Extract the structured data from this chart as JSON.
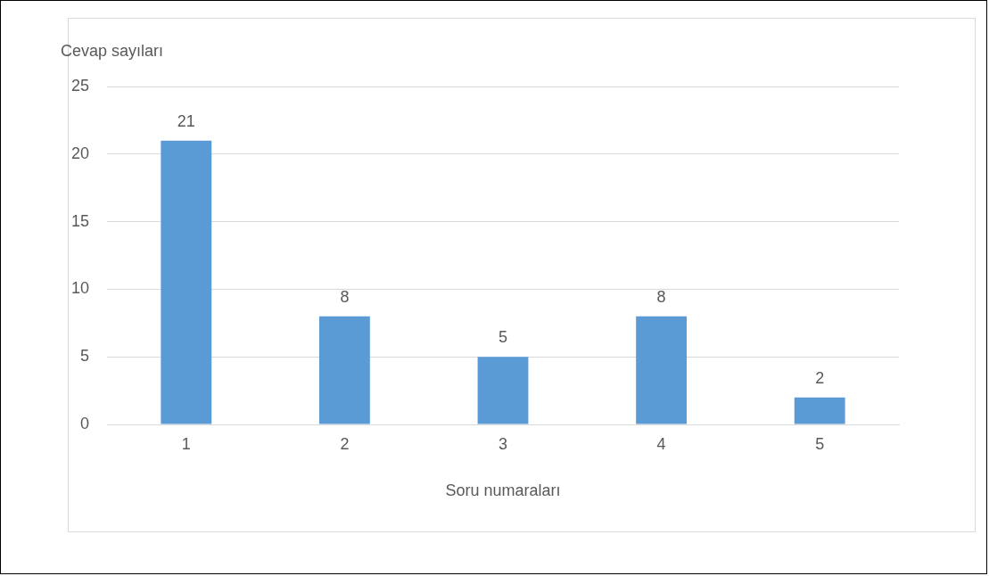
{
  "chart_data": {
    "type": "bar",
    "xlabel": "Soru numaraları",
    "ylabel": "Cevap sayıları",
    "categories": [
      "1",
      "2",
      "3",
      "4",
      "5"
    ],
    "values": [
      21,
      8,
      5,
      8,
      2
    ],
    "color": "#5b9bd5",
    "ylim": [
      0,
      25
    ],
    "yticks": [
      0,
      5,
      10,
      15,
      20,
      25
    ],
    "grid": "y",
    "legend": false,
    "data_labels": true
  }
}
